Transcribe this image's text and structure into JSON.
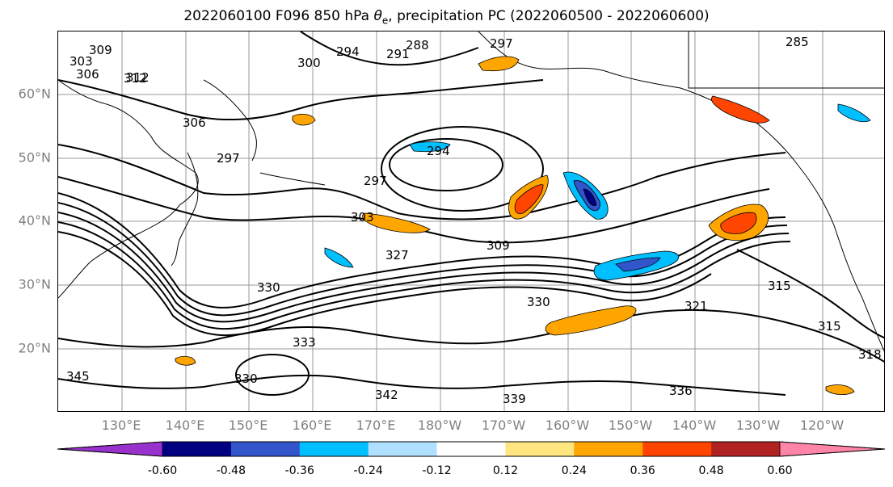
{
  "title": {
    "prefix": "2022060100 F096 850 hPa ",
    "theta": "θ",
    "theta_sub": "e",
    "suffix": ", precipitation PC (2022060500 - 2022060600)"
  },
  "map": {
    "lat_labels": [
      "60°N",
      "50°N",
      "40°N",
      "30°N",
      "20°N"
    ],
    "lon_labels": [
      "130°E",
      "140°E",
      "150°E",
      "160°E",
      "170°E",
      "180°W",
      "170°W",
      "160°W",
      "150°W",
      "140°W",
      "130°W",
      "120°W"
    ],
    "contour_labels": [
      "303",
      "306",
      "309",
      "312",
      "288",
      "294",
      "291",
      "297",
      "285",
      "300",
      "306",
      "297",
      "294",
      "297",
      "303",
      "309",
      "327",
      "312",
      "330",
      "330",
      "321",
      "315",
      "315",
      "330",
      "333",
      "342",
      "339",
      "336",
      "345",
      "318"
    ]
  },
  "chart_data": {
    "type": "map",
    "contour_field": "850 hPa theta_e",
    "shaded_field": "precipitation PC",
    "colorbar": {
      "ticks": [
        "-0.60",
        "-0.48",
        "-0.36",
        "-0.24",
        "-0.12",
        "0.12",
        "0.24",
        "0.36",
        "0.48",
        "0.60"
      ],
      "bounds": [
        -0.6,
        -0.48,
        -0.36,
        -0.24,
        -0.12,
        0.12,
        0.24,
        0.36,
        0.48,
        0.6
      ],
      "colors": [
        "#9932cc",
        "#000080",
        "#3355cc",
        "#00bfff",
        "#b0e0ff",
        "#ffffff",
        "#ffe680",
        "#ffa500",
        "#ff4500",
        "#b22222",
        "#ff85a8"
      ],
      "extend": "both"
    },
    "lat_ticks_deg": [
      60,
      50,
      40,
      30,
      20
    ],
    "lon_ticks_deg": [
      130,
      140,
      150,
      160,
      170,
      180,
      -170,
      -160,
      -150,
      -140,
      -130,
      -120
    ],
    "grid": true
  }
}
